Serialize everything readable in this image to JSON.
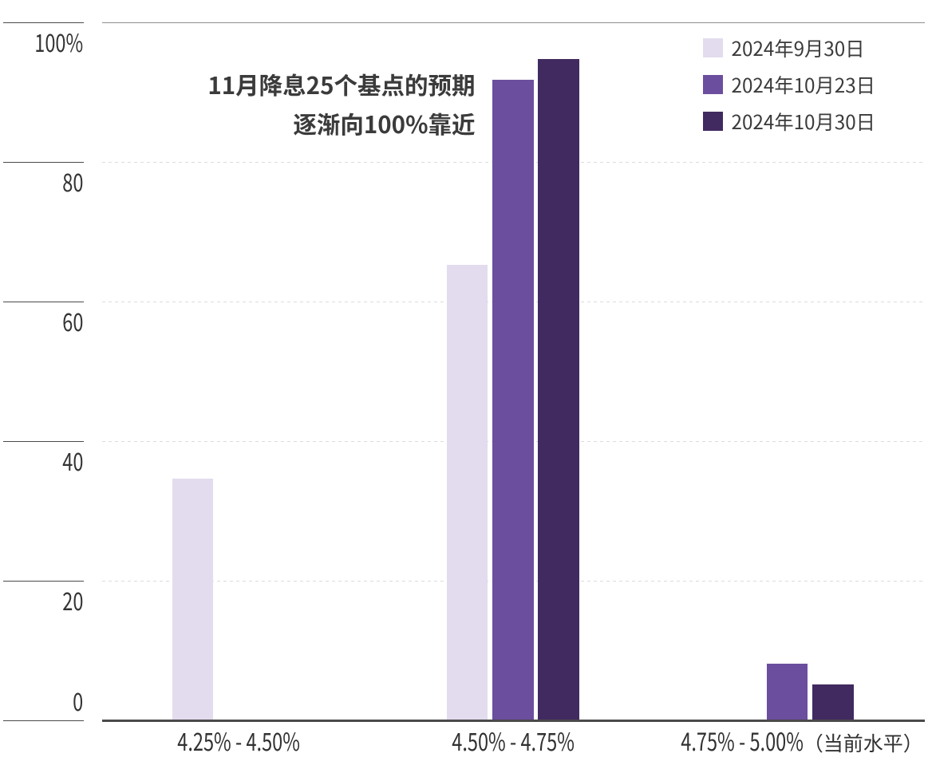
{
  "chart_data": {
    "type": "bar",
    "title": "11月降息25个基点的预期 逐渐向100%靠近",
    "annotation": {
      "lines": [
        "11月降息25个基点的预期",
        "逐渐向100%靠近"
      ]
    },
    "categories": [
      "4.25% - 4.50%",
      "4.50% - 4.75%",
      "4.75% - 5.00%（当前水平）"
    ],
    "series": [
      {
        "name": "2024年9月30日",
        "color": "#e3dcee",
        "values": [
          34.7,
          65.3,
          0
        ]
      },
      {
        "name": "2024年10月23日",
        "color": "#6c4e9e",
        "values": [
          0,
          91.8,
          8.2
        ]
      },
      {
        "name": "2024年10月30日",
        "color": "#412a60",
        "values": [
          0,
          94.8,
          5.2
        ]
      }
    ],
    "xlabel": "",
    "ylabel": "",
    "ylim": [
      0,
      100
    ],
    "yticks": [
      0,
      20,
      40,
      60,
      80,
      100
    ],
    "ytick_labels": [
      "0",
      "20",
      "40",
      "60",
      "80",
      "100%"
    ],
    "grid": "dashed horizontal",
    "legend_position": "top-right",
    "colors": {
      "axis": "#4a4a4a",
      "top_gridline": "#8f8f8f",
      "dashed_gridline": "#dcdcdc",
      "text": "#333333"
    }
  }
}
